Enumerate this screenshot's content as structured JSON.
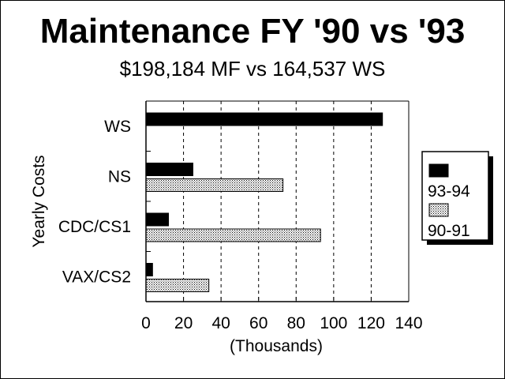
{
  "chart_data": {
    "type": "bar",
    "orientation": "horizontal",
    "title": "Maintenance FY '90 vs '93",
    "subtitle": "$198,184 MF vs 164,537 WS",
    "xlabel": "(Thousands)",
    "ylabel": "Yearly Costs",
    "xlim": [
      0,
      140
    ],
    "x_ticks": [
      "0",
      "20",
      "40",
      "60",
      "80",
      "100",
      "120",
      "140"
    ],
    "grid": "vertical dashed",
    "legend_position": "right",
    "categories": [
      "WS",
      "NS",
      "CDC/CS1",
      "VAX/CS2"
    ],
    "series": [
      {
        "name": "93-94",
        "fill": "#000000",
        "values": [
          126,
          25,
          12,
          3.5
        ]
      },
      {
        "name": "90-91",
        "fill": "#dcdcdc",
        "values": [
          0,
          73,
          93,
          33.5
        ]
      }
    ]
  }
}
